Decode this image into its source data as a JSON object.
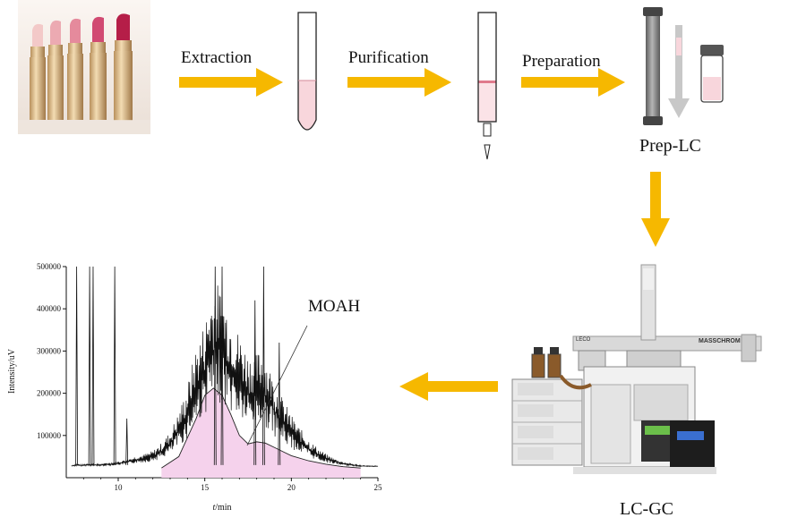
{
  "steps": {
    "extraction": "Extraction",
    "purification": "Purification",
    "preparation": "Preparation"
  },
  "instruments": {
    "prep_lc": "Prep-LC",
    "lc_gc": "LC-GC",
    "brand_left": "LECO",
    "brand_right": "MASSCHROM"
  },
  "colors": {
    "arrow": "#f6b800",
    "tube_fill": "#f8d6dc",
    "moah_fill": "#f5d2ec",
    "column": "#8c8c8c"
  },
  "chart_data": {
    "type": "line",
    "title": "",
    "xlabel": "t/min",
    "ylabel": "Intensity/uV",
    "xlim": [
      7,
      25
    ],
    "ylim": [
      0,
      500000
    ],
    "xticks": [
      10,
      15,
      20,
      25
    ],
    "yticks": [
      100000,
      200000,
      300000,
      400000,
      500000
    ],
    "ytick_labels": [
      "100000",
      "200000",
      "300000",
      "400000",
      "500000"
    ],
    "annotation": "MOAH",
    "series": [
      {
        "role": "chromatogram",
        "x": [
          7.3,
          7.6,
          7.9,
          8.3,
          8.6,
          9.0,
          9.5,
          9.8,
          10.2,
          10.6,
          11.0,
          11.5,
          12.0,
          12.5,
          13.0,
          13.5,
          14.0,
          14.5,
          15.0,
          15.3,
          15.6,
          15.8,
          16.1,
          16.5,
          17.0,
          17.5,
          18.0,
          18.3,
          18.6,
          19.0,
          19.5,
          20.0,
          20.5,
          21.0,
          21.5,
          22.0,
          22.5,
          23.0,
          23.5,
          24.0,
          24.5,
          25.0
        ],
        "y": [
          28000,
          30000,
          29000,
          31000,
          30000,
          30000,
          32000,
          33000,
          35000,
          38000,
          42000,
          45000,
          50000,
          62000,
          80000,
          110000,
          150000,
          210000,
          250000,
          290000,
          310000,
          305000,
          290000,
          260000,
          230000,
          200000,
          200000,
          210000,
          190000,
          160000,
          130000,
          105000,
          85000,
          68000,
          55000,
          45000,
          38000,
          33000,
          30000,
          28000,
          27000,
          27000
        ]
      },
      {
        "role": "moah-hump",
        "x": [
          12.5,
          13.5,
          14.5,
          15.0,
          15.5,
          16.0,
          16.5,
          17.0,
          17.5,
          18.0,
          18.5,
          19.0,
          19.5,
          20.0,
          21.0,
          22.0,
          23.0,
          24.0
        ],
        "y": [
          23000,
          50000,
          140000,
          195000,
          212000,
          195000,
          150000,
          100000,
          80000,
          85000,
          82000,
          72000,
          62000,
          52000,
          40000,
          32000,
          26000,
          23000
        ]
      }
    ],
    "spikes": [
      {
        "x": 7.6,
        "y": 500000
      },
      {
        "x": 8.35,
        "y": 500000
      },
      {
        "x": 8.55,
        "y": 500000
      },
      {
        "x": 9.8,
        "y": 500000
      },
      {
        "x": 10.5,
        "y": 140000
      },
      {
        "x": 15.6,
        "y": 500000
      },
      {
        "x": 16.0,
        "y": 500000
      },
      {
        "x": 18.4,
        "y": 500000
      },
      {
        "x": 17.9,
        "y": 420000
      },
      {
        "x": 19.3,
        "y": 320000
      }
    ]
  }
}
